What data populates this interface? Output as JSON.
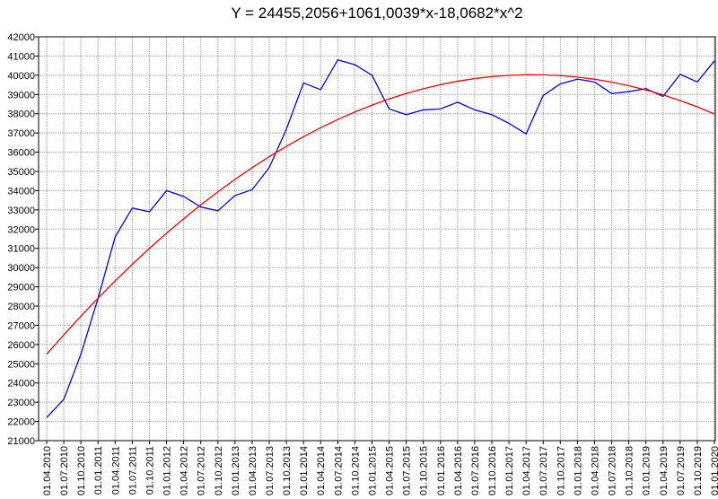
{
  "chart_data": {
    "type": "line",
    "title": "Y = 24455,2056+1061,0039*x-18,0682*x^2",
    "categories": [
      "01.04.2010",
      "01.07.2010",
      "01.10.2010",
      "01.01.2011",
      "01.04.2011",
      "01.07.2011",
      "01.10.2011",
      "01.01.2012",
      "01.04.2012",
      "01.07.2012",
      "01.10.2012",
      "01.01.2013",
      "01.04.2013",
      "01.07.2013",
      "01.10.2013",
      "01.01.2014",
      "01.04.2014",
      "01.07.2014",
      "01.10.2014",
      "01.01.2015",
      "01.04.2015",
      "01.07.2015",
      "01.10.2015",
      "01.01.2016",
      "01.04.2016",
      "01.07.2016",
      "01.10.2016",
      "01.01.2017",
      "01.04.2017",
      "01.07.2017",
      "01.10.2017",
      "01.01.2018",
      "01.04.2018",
      "01.07.2018",
      "01.10.2018",
      "01.01.2019",
      "01.04.2019",
      "01.07.2019",
      "01.10.2019",
      "01.01.2020"
    ],
    "series": [
      {
        "color": "#0000ff",
        "values": [
          22200,
          23150,
          25500,
          28400,
          31600,
          33100,
          32900,
          34000,
          33700,
          33150,
          32950,
          33750,
          34050,
          35200,
          37200,
          39600,
          39250,
          40800,
          40550,
          40000,
          38250,
          37950,
          38200,
          38250,
          38600,
          38200,
          37950,
          37500,
          36950,
          38950,
          39550,
          39800,
          39650,
          39050,
          39150,
          39300,
          38900,
          40050,
          39650,
          40750
        ]
      },
      {
        "color": "#ff0000",
        "values": [
          25498.1,
          26504.9,
          27475.6,
          28410.1,
          29308.5,
          30170.7,
          30996.9,
          31786.8,
          32540.7,
          33258.4,
          33939.9,
          34585.4,
          35194.8,
          35767.9,
          36305.0,
          36805.8,
          37270.6,
          37699.2,
          38091.7,
          38448.0,
          38768.2,
          39052.3,
          39300.2,
          39512.0,
          39687.7,
          39827.2,
          39930.6,
          39997.8,
          40028.9,
          40023.9,
          39982.8,
          39905.5,
          39792.0,
          39642.5,
          39456.8,
          39234.9,
          38976.9,
          38682.8,
          38352.7,
          37986.3
        ]
      }
    ],
    "ylim": [
      21000,
      42000
    ],
    "yticks": [
      21000,
      22000,
      23000,
      24000,
      25000,
      26000,
      27000,
      28000,
      29000,
      30000,
      31000,
      32000,
      33000,
      34000,
      35000,
      36000,
      37000,
      38000,
      39000,
      40000,
      41000,
      42000
    ],
    "grid": true
  }
}
